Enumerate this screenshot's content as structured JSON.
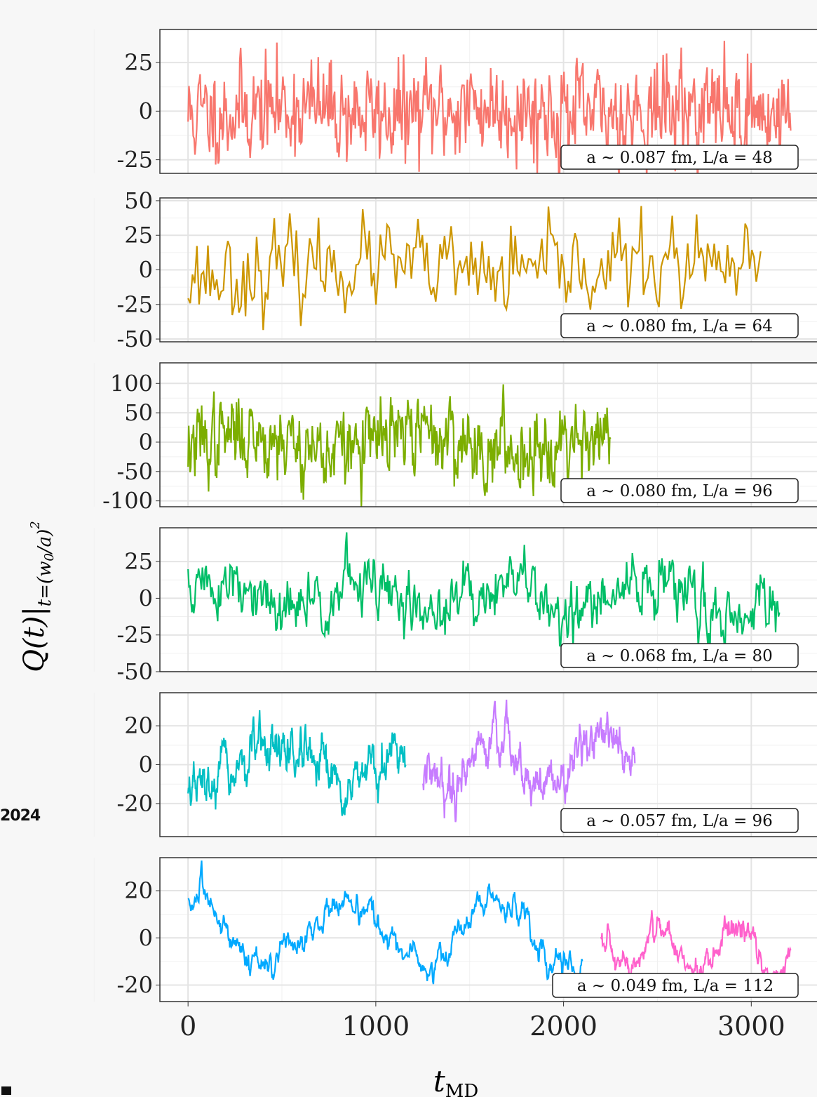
{
  "watermark": "2024",
  "chart_data": {
    "type": "line",
    "xlabel": "t_MD",
    "ylabel": "Q(t)|_{t=(w0/a)^2}",
    "xlim": [
      -150,
      3350
    ],
    "xticks": [
      0,
      1000,
      2000,
      3000
    ],
    "grid": true,
    "panels": [
      {
        "label": "a ~ 0.087 fm, L/a = 48",
        "ylim": [
          -32,
          42
        ],
        "yticks": [
          -25,
          0,
          25
        ],
        "series": [
          {
            "color": "#F8766D",
            "x_start": 0,
            "x_end": 3210,
            "n": 700,
            "seed": 11,
            "sigma": 13,
            "rho": 0.3,
            "mean_amp": 2,
            "mean_freq": 3,
            "offset": 0
          }
        ]
      },
      {
        "label": "a ~ 0.080 fm, L/a = 64",
        "ylim": [
          -52,
          52
        ],
        "yticks": [
          -50,
          -25,
          0,
          25,
          50
        ],
        "series": [
          {
            "color": "#CD9600",
            "x_start": 0,
            "x_end": 3050,
            "n": 260,
            "seed": 23,
            "sigma": 16,
            "rho": 0.25,
            "mean_amp": 4,
            "mean_freq": 2,
            "offset": 0
          }
        ]
      },
      {
        "label": "a ~ 0.080 fm, L/a = 96",
        "ylim": [
          -110,
          135
        ],
        "yticks": [
          -100,
          -50,
          0,
          50,
          100
        ],
        "series": [
          {
            "color": "#7CAE00",
            "x_start": 0,
            "x_end": 2250,
            "n": 620,
            "seed": 37,
            "sigma": 35,
            "rho": 0.55,
            "mean_amp": 15,
            "mean_freq": 2.5,
            "offset": 0
          }
        ]
      },
      {
        "label": "a ~ 0.068 fm, L/a = 80",
        "ylim": [
          -50,
          48
        ],
        "yticks": [
          -50,
          -25,
          0,
          25
        ],
        "series": [
          {
            "color": "#00BE67",
            "x_start": 0,
            "x_end": 3150,
            "n": 620,
            "seed": 51,
            "sigma": 12,
            "rho": 0.6,
            "mean_amp": 10,
            "mean_freq": 4,
            "offset": 0
          }
        ]
      },
      {
        "label": "a ~ 0.057 fm, L/a = 96",
        "ylim": [
          -37,
          37
        ],
        "yticks": [
          -20,
          0,
          20
        ],
        "series": [
          {
            "color": "#00BFC4",
            "x_start": 0,
            "x_end": 1160,
            "n": 500,
            "seed": 67,
            "sigma": 7,
            "rho": 0.8,
            "mean_amp": 10,
            "mean_freq": 1.5,
            "offset": -2
          },
          {
            "color": "#C77CFF",
            "x_start": 1250,
            "x_end": 2380,
            "n": 500,
            "seed": 79,
            "sigma": 7,
            "rho": 0.8,
            "mean_amp": 12,
            "mean_freq": 2,
            "offset": 2
          }
        ]
      },
      {
        "label": "a ~ 0.049 fm, L/a = 112",
        "ylim": [
          -27,
          34
        ],
        "yticks": [
          -20,
          0,
          20
        ],
        "series": [
          {
            "color": "#00A9FF",
            "x_start": 0,
            "x_end": 2100,
            "n": 700,
            "seed": 83,
            "sigma": 4,
            "rho": 0.85,
            "mean_amp": 14,
            "mean_freq": 2.6,
            "offset": 2
          },
          {
            "color": "#FF61CC",
            "x_start": 2200,
            "x_end": 3210,
            "n": 420,
            "seed": 97,
            "sigma": 4,
            "rho": 0.85,
            "mean_amp": 9,
            "mean_freq": 2.5,
            "offset": -6
          }
        ]
      }
    ]
  }
}
